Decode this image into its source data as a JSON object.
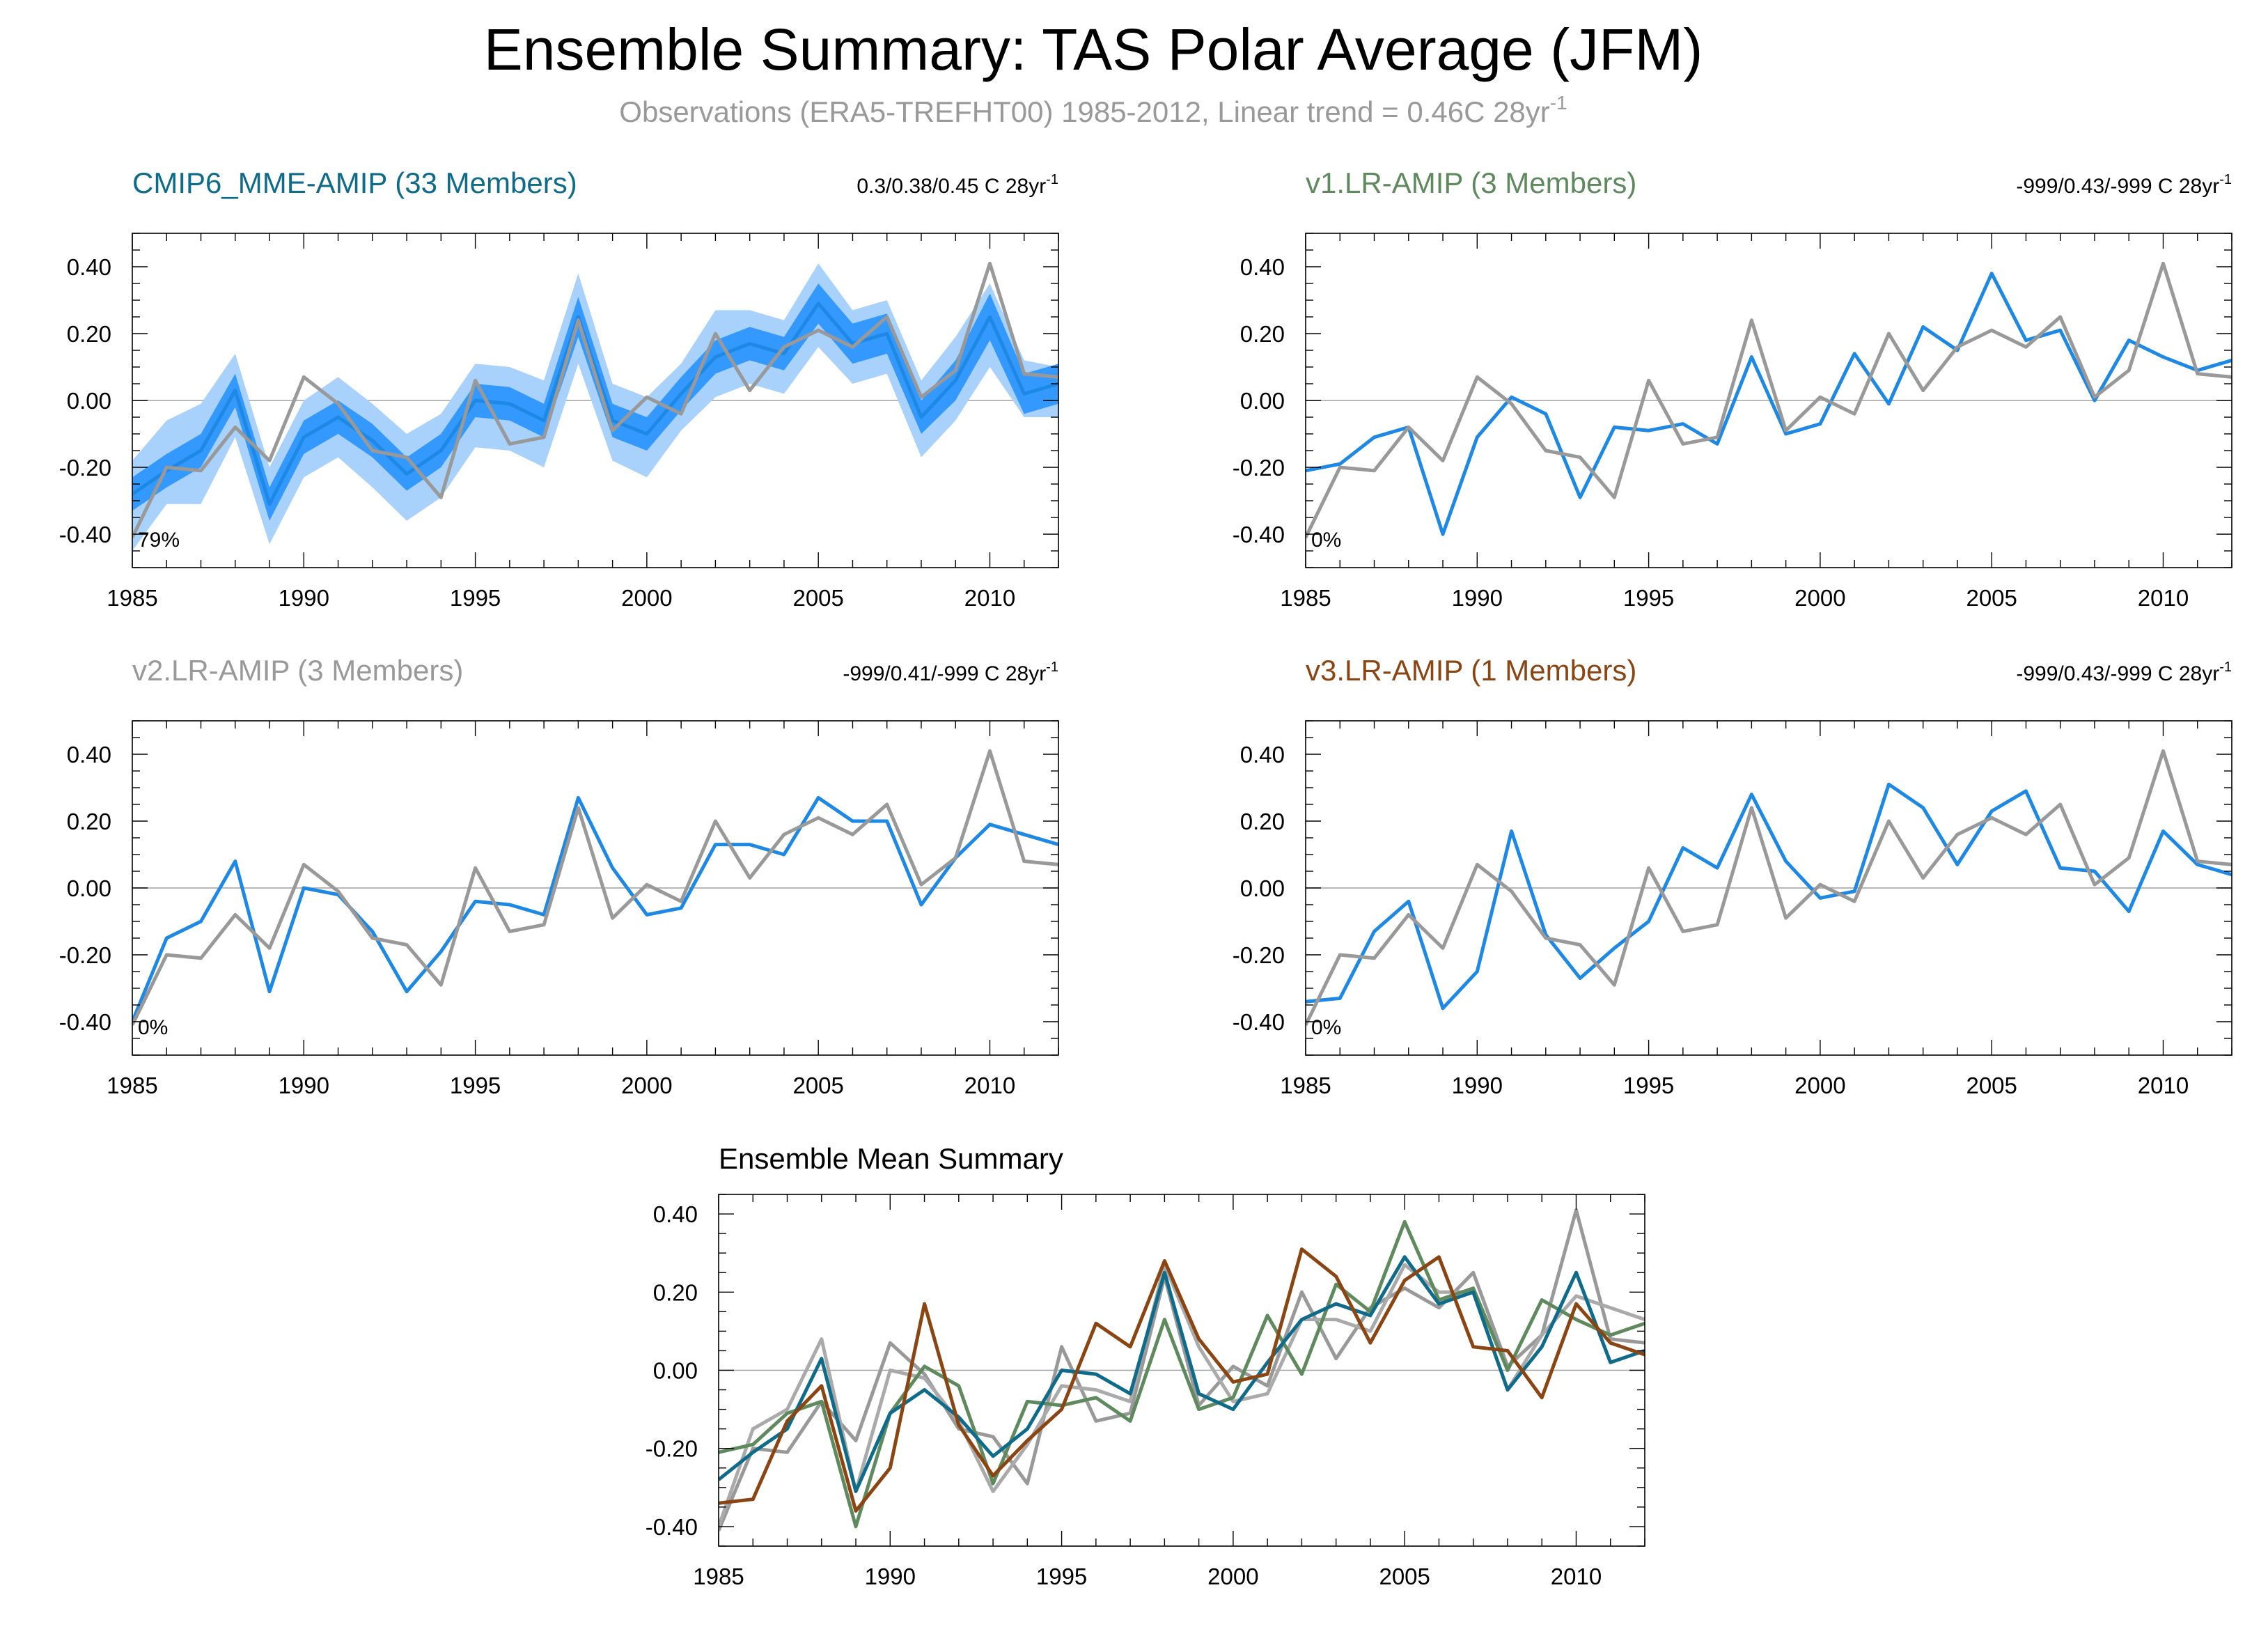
{
  "figure": {
    "title": "Ensemble Summary: TAS Polar Average (JFM)",
    "subtitle": "Observations (ERA5-TREFHT00) 1985-2012, Linear trend = 0.46C 28yr",
    "subtitle_sup": "-1"
  },
  "colors": {
    "obs": "#999999",
    "model_line": "#1e88e5",
    "band_outer": "#a8d1fb",
    "band_inner": "#3399ff",
    "cmip6": "#0f6b8a",
    "v1": "#5e8a5e",
    "v2": "#999999",
    "v3": "#8b4513",
    "zero_line": "#a0a0a0"
  },
  "chart_data": [
    {
      "id": "cmip6",
      "type": "line",
      "title": "CMIP6_MME-AMIP (33 Members)",
      "title_color": "#0f6b8a",
      "trend_text": "0.3/0.38/0.45 C 28yr",
      "trend_sup": "-1",
      "percent_label": "79%",
      "xlim": [
        1985,
        2012
      ],
      "ylim": [
        -0.5,
        0.5
      ],
      "xticks": [
        1985,
        1990,
        1995,
        2000,
        2005,
        2010
      ],
      "yticks": [
        "0.40",
        "0.20",
        "0.00",
        "-0.20",
        "-0.40"
      ],
      "x": [
        1985,
        1986,
        1987,
        1988,
        1989,
        1990,
        1991,
        1992,
        1993,
        1994,
        1995,
        1996,
        1997,
        1998,
        1999,
        2000,
        2001,
        2002,
        2003,
        2004,
        2005,
        2006,
        2007,
        2008,
        2009,
        2010,
        2011,
        2012
      ],
      "obs": [
        -0.41,
        -0.2,
        -0.21,
        -0.08,
        -0.18,
        0.07,
        -0.01,
        -0.15,
        -0.17,
        -0.29,
        0.06,
        -0.13,
        -0.11,
        0.24,
        -0.09,
        0.01,
        -0.04,
        0.2,
        0.03,
        0.16,
        0.21,
        0.16,
        0.25,
        0.01,
        0.09,
        0.41,
        0.08,
        0.07
      ],
      "mean": [
        -0.28,
        -0.21,
        -0.15,
        0.03,
        -0.31,
        -0.11,
        -0.05,
        -0.12,
        -0.22,
        -0.15,
        0.0,
        -0.01,
        -0.06,
        0.25,
        -0.06,
        -0.1,
        0.02,
        0.13,
        0.17,
        0.14,
        0.29,
        0.17,
        0.2,
        -0.05,
        0.06,
        0.25,
        0.02,
        0.05
      ],
      "inner_lo": [
        -0.33,
        -0.26,
        -0.2,
        -0.02,
        -0.36,
        -0.16,
        -0.1,
        -0.17,
        -0.27,
        -0.2,
        -0.05,
        -0.06,
        -0.11,
        0.19,
        -0.11,
        -0.15,
        -0.03,
        0.08,
        0.12,
        0.09,
        0.23,
        0.11,
        0.14,
        -0.1,
        0.0,
        0.18,
        -0.04,
        -0.01
      ],
      "inner_hi": [
        -0.23,
        -0.16,
        -0.1,
        0.08,
        -0.26,
        -0.06,
        0.0,
        -0.07,
        -0.17,
        -0.1,
        0.05,
        0.04,
        -0.01,
        0.31,
        -0.01,
        -0.05,
        0.07,
        0.18,
        0.22,
        0.19,
        0.35,
        0.23,
        0.26,
        0.0,
        0.12,
        0.32,
        0.08,
        0.11
      ],
      "outer_lo": [
        -0.45,
        -0.31,
        -0.31,
        -0.11,
        -0.43,
        -0.23,
        -0.17,
        -0.26,
        -0.36,
        -0.29,
        -0.14,
        -0.15,
        -0.2,
        0.11,
        -0.18,
        -0.23,
        -0.09,
        0.01,
        0.05,
        0.02,
        0.16,
        0.05,
        0.08,
        -0.17,
        -0.06,
        0.1,
        -0.05,
        -0.05
      ],
      "outer_hi": [
        -0.18,
        -0.06,
        -0.01,
        0.14,
        -0.2,
        0.0,
        0.07,
        -0.01,
        -0.1,
        -0.04,
        0.11,
        0.1,
        0.06,
        0.38,
        0.05,
        0.01,
        0.11,
        0.27,
        0.27,
        0.24,
        0.41,
        0.27,
        0.3,
        0.06,
        0.19,
        0.35,
        0.12,
        0.1
      ]
    },
    {
      "id": "v1",
      "type": "line",
      "title": "v1.LR-AMIP (3 Members)",
      "title_color": "#5e8a5e",
      "trend_text": "-999/0.43/-999 C 28yr",
      "trend_sup": "-1",
      "percent_label": "0%",
      "xlim": [
        1985,
        2012
      ],
      "ylim": [
        -0.5,
        0.5
      ],
      "xticks": [
        1985,
        1990,
        1995,
        2000,
        2005,
        2010
      ],
      "yticks": [
        "0.40",
        "0.20",
        "0.00",
        "-0.20",
        "-0.40"
      ],
      "x": [
        1985,
        1986,
        1987,
        1988,
        1989,
        1990,
        1991,
        1992,
        1993,
        1994,
        1995,
        1996,
        1997,
        1998,
        1999,
        2000,
        2001,
        2002,
        2003,
        2004,
        2005,
        2006,
        2007,
        2008,
        2009,
        2010,
        2011,
        2012
      ],
      "obs": [
        -0.41,
        -0.2,
        -0.21,
        -0.08,
        -0.18,
        0.07,
        -0.01,
        -0.15,
        -0.17,
        -0.29,
        0.06,
        -0.13,
        -0.11,
        0.24,
        -0.09,
        0.01,
        -0.04,
        0.2,
        0.03,
        0.16,
        0.21,
        0.16,
        0.25,
        0.01,
        0.09,
        0.41,
        0.08,
        0.07
      ],
      "model": [
        -0.21,
        -0.19,
        -0.11,
        -0.08,
        -0.4,
        -0.11,
        0.01,
        -0.04,
        -0.29,
        -0.08,
        -0.09,
        -0.07,
        -0.13,
        0.13,
        -0.1,
        -0.07,
        0.14,
        -0.01,
        0.22,
        0.15,
        0.38,
        0.18,
        0.21,
        0.0,
        0.18,
        0.13,
        0.09,
        0.12
      ]
    },
    {
      "id": "v2",
      "type": "line",
      "title": "v2.LR-AMIP (3 Members)",
      "title_color": "#999999",
      "trend_text": "-999/0.41/-999 C 28yr",
      "trend_sup": "-1",
      "percent_label": "0%",
      "xlim": [
        1985,
        2012
      ],
      "ylim": [
        -0.5,
        0.5
      ],
      "xticks": [
        1985,
        1990,
        1995,
        2000,
        2005,
        2010
      ],
      "yticks": [
        "0.40",
        "0.20",
        "0.00",
        "-0.20",
        "-0.40"
      ],
      "x": [
        1985,
        1986,
        1987,
        1988,
        1989,
        1990,
        1991,
        1992,
        1993,
        1994,
        1995,
        1996,
        1997,
        1998,
        1999,
        2000,
        2001,
        2002,
        2003,
        2004,
        2005,
        2006,
        2007,
        2008,
        2009,
        2010,
        2011,
        2012
      ],
      "obs": [
        -0.41,
        -0.2,
        -0.21,
        -0.08,
        -0.18,
        0.07,
        -0.01,
        -0.15,
        -0.17,
        -0.29,
        0.06,
        -0.13,
        -0.11,
        0.24,
        -0.09,
        0.01,
        -0.04,
        0.2,
        0.03,
        0.16,
        0.21,
        0.16,
        0.25,
        0.01,
        0.09,
        0.41,
        0.08,
        0.07
      ],
      "model": [
        -0.4,
        -0.15,
        -0.1,
        0.08,
        -0.31,
        0.0,
        -0.02,
        -0.13,
        -0.31,
        -0.19,
        -0.04,
        -0.05,
        -0.08,
        0.27,
        0.06,
        -0.08,
        -0.06,
        0.13,
        0.13,
        0.1,
        0.27,
        0.2,
        0.2,
        -0.05,
        0.09,
        0.19,
        0.16,
        0.13
      ]
    },
    {
      "id": "v3",
      "type": "line",
      "title": "v3.LR-AMIP (1 Members)",
      "title_color": "#8b4513",
      "trend_text": "-999/0.43/-999 C 28yr",
      "trend_sup": "-1",
      "percent_label": "0%",
      "xlim": [
        1985,
        2012
      ],
      "ylim": [
        -0.5,
        0.5
      ],
      "xticks": [
        1985,
        1990,
        1995,
        2000,
        2005,
        2010
      ],
      "yticks": [
        "0.40",
        "0.20",
        "0.00",
        "-0.20",
        "-0.40"
      ],
      "x": [
        1985,
        1986,
        1987,
        1988,
        1989,
        1990,
        1991,
        1992,
        1993,
        1994,
        1995,
        1996,
        1997,
        1998,
        1999,
        2000,
        2001,
        2002,
        2003,
        2004,
        2005,
        2006,
        2007,
        2008,
        2009,
        2010,
        2011,
        2012
      ],
      "obs": [
        -0.41,
        -0.2,
        -0.21,
        -0.08,
        -0.18,
        0.07,
        -0.01,
        -0.15,
        -0.17,
        -0.29,
        0.06,
        -0.13,
        -0.11,
        0.24,
        -0.09,
        0.01,
        -0.04,
        0.2,
        0.03,
        0.16,
        0.21,
        0.16,
        0.25,
        0.01,
        0.09,
        0.41,
        0.08,
        0.07
      ],
      "model": [
        -0.34,
        -0.33,
        -0.13,
        -0.04,
        -0.36,
        -0.25,
        0.17,
        -0.14,
        -0.27,
        -0.18,
        -0.1,
        0.12,
        0.06,
        0.28,
        0.08,
        -0.03,
        -0.01,
        0.31,
        0.24,
        0.07,
        0.23,
        0.29,
        0.06,
        0.05,
        -0.07,
        0.17,
        0.07,
        0.04
      ]
    },
    {
      "id": "summary",
      "type": "line",
      "title": "Ensemble Mean Summary",
      "title_color": "#000000",
      "xlim": [
        1985,
        2012
      ],
      "ylim": [
        -0.45,
        0.45
      ],
      "xticks": [
        1985,
        1990,
        1995,
        2000,
        2005,
        2010
      ],
      "yticks": [
        "0.40",
        "0.20",
        "0.00",
        "-0.20",
        "-0.40"
      ],
      "x": [
        1985,
        1986,
        1987,
        1988,
        1989,
        1990,
        1991,
        1992,
        1993,
        1994,
        1995,
        1996,
        1997,
        1998,
        1999,
        2000,
        2001,
        2002,
        2003,
        2004,
        2005,
        2006,
        2007,
        2008,
        2009,
        2010,
        2011,
        2012
      ],
      "series": [
        {
          "color": "#999999",
          "values": [
            -0.41,
            -0.2,
            -0.21,
            -0.08,
            -0.18,
            0.07,
            -0.01,
            -0.15,
            -0.17,
            -0.29,
            0.06,
            -0.13,
            -0.11,
            0.24,
            -0.09,
            0.01,
            -0.04,
            0.2,
            0.03,
            0.16,
            0.21,
            0.16,
            0.25,
            0.01,
            0.09,
            0.41,
            0.08,
            0.07
          ]
        },
        {
          "color": "#aaaaaa",
          "values": [
            -0.4,
            -0.15,
            -0.1,
            0.08,
            -0.31,
            0.0,
            -0.02,
            -0.13,
            -0.31,
            -0.19,
            -0.04,
            -0.05,
            -0.08,
            0.27,
            0.06,
            -0.08,
            -0.06,
            0.13,
            0.13,
            0.1,
            0.27,
            0.2,
            0.2,
            -0.05,
            0.09,
            0.19,
            0.16,
            0.13
          ]
        },
        {
          "color": "#5e8a5e",
          "values": [
            -0.21,
            -0.19,
            -0.11,
            -0.08,
            -0.4,
            -0.11,
            0.01,
            -0.04,
            -0.29,
            -0.08,
            -0.09,
            -0.07,
            -0.13,
            0.13,
            -0.1,
            -0.07,
            0.14,
            -0.01,
            0.22,
            0.15,
            0.38,
            0.18,
            0.21,
            0.0,
            0.18,
            0.13,
            0.09,
            0.12
          ]
        },
        {
          "color": "#0f6b8a",
          "values": [
            -0.28,
            -0.21,
            -0.15,
            0.03,
            -0.31,
            -0.11,
            -0.05,
            -0.12,
            -0.22,
            -0.15,
            0.0,
            -0.01,
            -0.06,
            0.25,
            -0.06,
            -0.1,
            0.02,
            0.13,
            0.17,
            0.14,
            0.29,
            0.17,
            0.2,
            -0.05,
            0.06,
            0.25,
            0.02,
            0.05
          ]
        },
        {
          "color": "#8b4513",
          "values": [
            -0.34,
            -0.33,
            -0.13,
            -0.04,
            -0.36,
            -0.25,
            0.17,
            -0.14,
            -0.27,
            -0.18,
            -0.1,
            0.12,
            0.06,
            0.28,
            0.08,
            -0.03,
            -0.01,
            0.31,
            0.24,
            0.07,
            0.23,
            0.29,
            0.06,
            0.05,
            -0.07,
            0.17,
            0.07,
            0.04
          ]
        }
      ]
    }
  ]
}
